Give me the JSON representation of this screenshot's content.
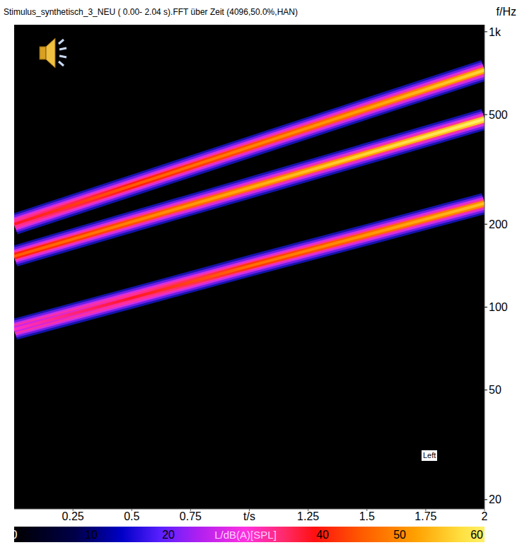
{
  "chart_data": {
    "type": "spectrogram",
    "title": "Stimulus_synthetisch_3_NEU ( 0.00- 2.04 s).FFT über Zeit (4096,50.0%,HAN)",
    "y_label": "f/Hz",
    "x": [
      0,
      0.5,
      1,
      1.5,
      2
    ],
    "series": [
      {
        "values": [
          200,
          276,
          381,
          526,
          725
        ],
        "levels": [
          33,
          40,
          44,
          47,
          52
        ]
      },
      {
        "values": [
          153,
          204,
          271,
          361,
          481
        ],
        "levels": [
          40,
          44,
          48,
          52,
          56
        ]
      },
      {
        "values": [
          83,
          108,
          141,
          183,
          238
        ],
        "levels": [
          26,
          33,
          42,
          46,
          50
        ]
      }
    ],
    "xlim": [
      0,
      2
    ],
    "xticks": [
      0.25,
      0.5,
      0.75,
      {
        "value": 1,
        "label": "t/s"
      },
      1.25,
      1.5,
      1.75,
      2
    ],
    "ylim": [
      18.5,
      1060
    ],
    "yticks": [
      20,
      50,
      100,
      200,
      500,
      {
        "value": 1000,
        "label": "1k"
      }
    ],
    "log": "y",
    "colorbar": {
      "range": [
        0,
        61
      ],
      "ticks": [
        0,
        10,
        20,
        {
          "value": 30,
          "label": "L/dB(A)[SPL]"
        },
        40,
        50,
        60
      ]
    },
    "annotations": [
      "Left"
    ]
  }
}
